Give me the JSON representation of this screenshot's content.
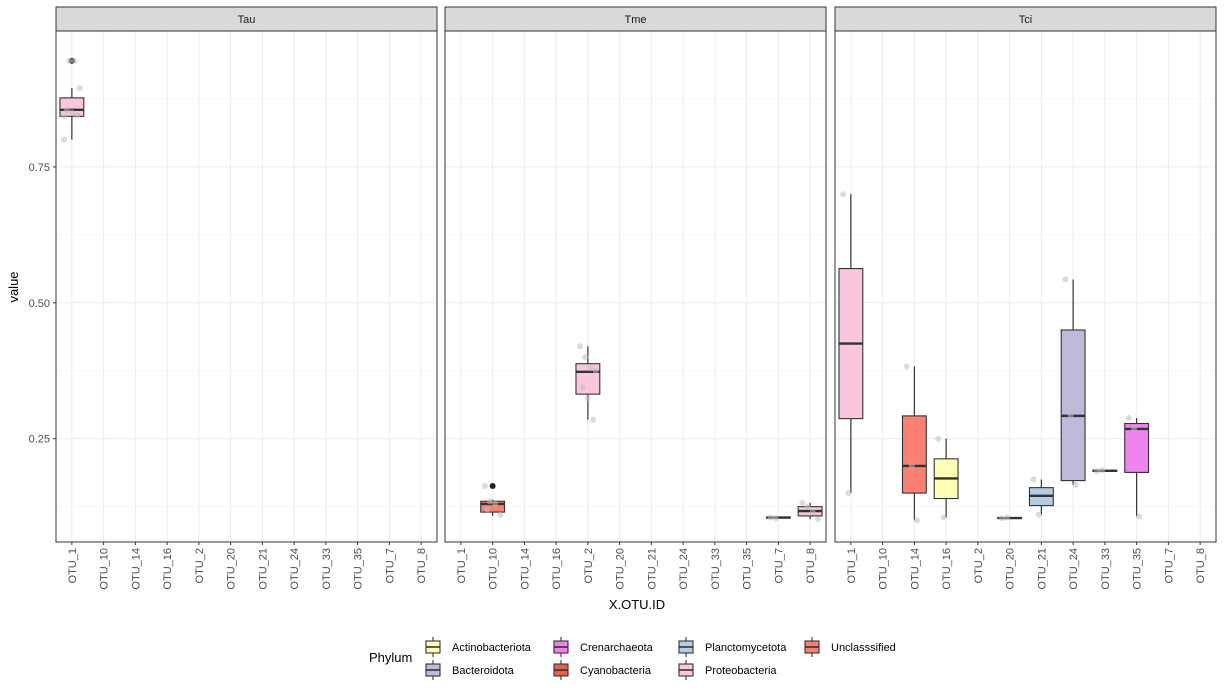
{
  "chart_data": {
    "type": "box",
    "xlabel": "X.OTU.ID",
    "ylabel": "value",
    "categories": [
      "OTU_1",
      "OTU_10",
      "OTU_14",
      "OTU_16",
      "OTU_2",
      "OTU_20",
      "OTU_21",
      "OTU_24",
      "OTU_33",
      "OTU_35",
      "OTU_7",
      "OTU_8"
    ],
    "ylim": [
      0.06,
      1.0
    ],
    "yticks": [
      0.25,
      0.5,
      0.75
    ],
    "ytick_labels": [
      "0.25",
      "0.50",
      "0.75"
    ],
    "grid": true,
    "legend": {
      "title": "Phylum",
      "position": "bottom",
      "entries": [
        {
          "name": "Actinobacteriota",
          "color": "#FFFFB3"
        },
        {
          "name": "Bacteroidota",
          "color": "#BEBADA"
        },
        {
          "name": "Crenarchaeota",
          "color": "#EE82EE"
        },
        {
          "name": "Cyanobacteria",
          "color": "#E8604C"
        },
        {
          "name": "Planctomycetota",
          "color": "#B3CDE3"
        },
        {
          "name": "Proteobacteria",
          "color": "#F9C6DD"
        },
        {
          "name": "Unclasssified",
          "color": "#FA8072"
        }
      ]
    },
    "facets": [
      {
        "label": "Tau",
        "boxes": [
          {
            "category": "OTU_1",
            "phylum": "Proteobacteria",
            "whisker_low": 0.8,
            "q1": 0.843,
            "median": 0.855,
            "q3": 0.877,
            "whisker_high": 0.895,
            "outliers": [
              0.945
            ]
          }
        ],
        "points": [
          {
            "category": "OTU_1",
            "values": [
              0.8,
              0.945,
              0.945,
              0.895,
              0.855,
              0.85,
              0.845,
              0.843
            ]
          }
        ]
      },
      {
        "label": "Tme",
        "boxes": [
          {
            "category": "OTU_10",
            "phylum": "Unclasssified",
            "whisker_low": 0.108,
            "q1": 0.115,
            "median": 0.13,
            "q3": 0.135,
            "whisker_high": 0.138,
            "outliers": [
              0.163
            ]
          },
          {
            "category": "OTU_2",
            "phylum": "Proteobacteria",
            "whisker_low": 0.285,
            "q1": 0.332,
            "median": 0.373,
            "q3": 0.388,
            "whisker_high": 0.42,
            "outliers": []
          },
          {
            "category": "OTU_7",
            "phylum": "Unclasssified",
            "whisker_low": 0.103,
            "q1": 0.104,
            "median": 0.105,
            "q3": 0.106,
            "whisker_high": 0.107,
            "outliers": []
          },
          {
            "category": "OTU_8",
            "phylum": "Proteobacteria",
            "whisker_low": 0.102,
            "q1": 0.108,
            "median": 0.117,
            "q3": 0.125,
            "whisker_high": 0.132,
            "outliers": []
          }
        ],
        "points": [
          {
            "category": "OTU_10",
            "values": [
              0.163,
              0.135,
              0.13,
              0.11,
              0.12
            ]
          },
          {
            "category": "OTU_2",
            "values": [
              0.42,
              0.4,
              0.38,
              0.375,
              0.345,
              0.325,
              0.285
            ]
          },
          {
            "category": "OTU_7",
            "values": [
              0.105,
              0.104
            ]
          },
          {
            "category": "OTU_8",
            "values": [
              0.132,
              0.125,
              0.115,
              0.102
            ]
          }
        ]
      },
      {
        "label": "Tci",
        "boxes": [
          {
            "category": "OTU_1",
            "phylum": "Proteobacteria",
            "whisker_low": 0.15,
            "q1": 0.287,
            "median": 0.425,
            "q3": 0.563,
            "whisker_high": 0.7,
            "outliers": []
          },
          {
            "category": "OTU_14",
            "phylum": "Unclasssified",
            "whisker_low": 0.1,
            "q1": 0.15,
            "median": 0.2,
            "q3": 0.292,
            "whisker_high": 0.383,
            "outliers": []
          },
          {
            "category": "OTU_16",
            "phylum": "Actinobacteriota",
            "whisker_low": 0.105,
            "q1": 0.14,
            "median": 0.177,
            "q3": 0.213,
            "whisker_high": 0.25,
            "outliers": []
          },
          {
            "category": "OTU_20",
            "phylum": "Crenarchaeota",
            "whisker_low": 0.104,
            "q1": 0.104,
            "median": 0.104,
            "q3": 0.105,
            "whisker_high": 0.105,
            "outliers": []
          },
          {
            "category": "OTU_21",
            "phylum": "Planctomycetota",
            "whisker_low": 0.11,
            "q1": 0.127,
            "median": 0.145,
            "q3": 0.16,
            "whisker_high": 0.175,
            "outliers": []
          },
          {
            "category": "OTU_24",
            "phylum": "Bacteroidota",
            "whisker_low": 0.165,
            "q1": 0.173,
            "median": 0.292,
            "q3": 0.45,
            "whisker_high": 0.543,
            "outliers": []
          },
          {
            "category": "OTU_33",
            "phylum": "Crenarchaeota",
            "whisker_low": 0.19,
            "q1": 0.19,
            "median": 0.191,
            "q3": 0.192,
            "whisker_high": 0.192,
            "outliers": []
          },
          {
            "category": "OTU_35",
            "phylum": "Crenarchaeota",
            "whisker_low": 0.107,
            "q1": 0.188,
            "median": 0.268,
            "q3": 0.278,
            "whisker_high": 0.288,
            "outliers": []
          }
        ],
        "points": [
          {
            "category": "OTU_1",
            "values": [
              0.7,
              0.15
            ]
          },
          {
            "category": "OTU_14",
            "values": [
              0.383,
              0.2,
              0.1
            ]
          },
          {
            "category": "OTU_16",
            "values": [
              0.25,
              0.105
            ]
          },
          {
            "category": "OTU_20",
            "values": [
              0.104,
              0.105
            ]
          },
          {
            "category": "OTU_21",
            "values": [
              0.175,
              0.11
            ]
          },
          {
            "category": "OTU_24",
            "values": [
              0.543,
              0.292,
              0.165
            ]
          },
          {
            "category": "OTU_33",
            "values": [
              0.19,
              0.192
            ]
          },
          {
            "category": "OTU_35",
            "values": [
              0.288,
              0.268,
              0.107
            ]
          }
        ]
      }
    ]
  }
}
